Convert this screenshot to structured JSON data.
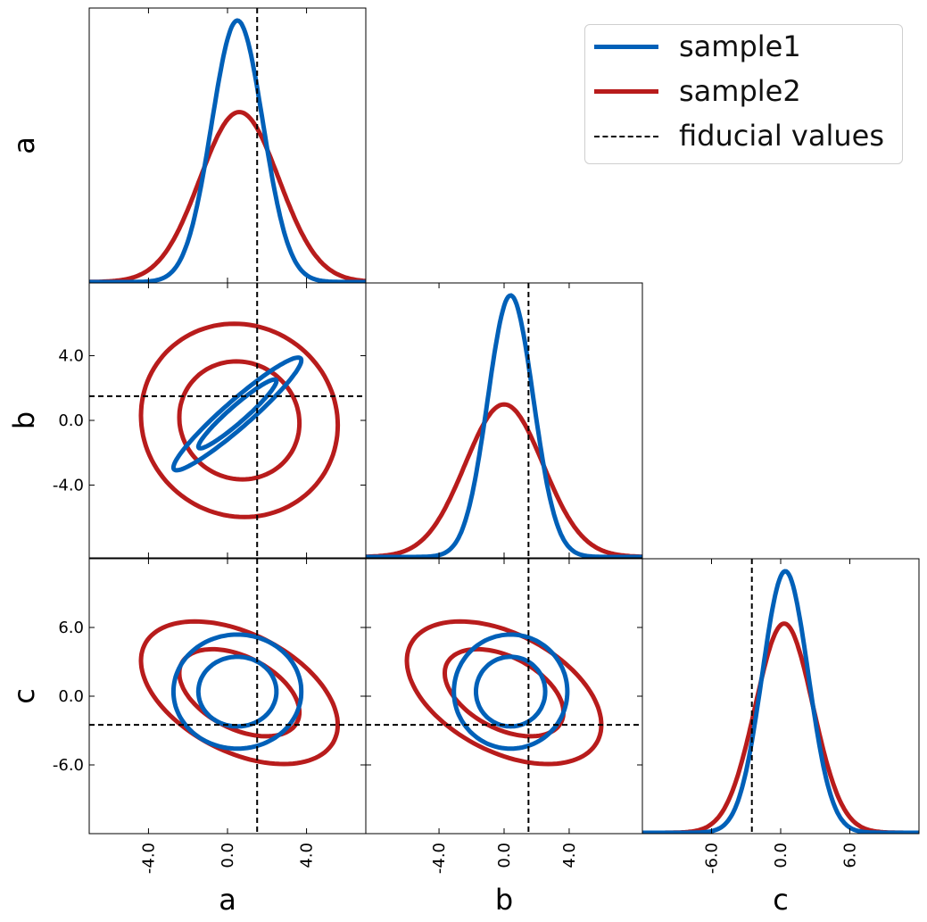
{
  "chart_data": {
    "type": "corner",
    "title": "",
    "parameters": [
      "a",
      "b",
      "c"
    ],
    "fiducial": {
      "a": 1.5,
      "b": 1.5,
      "c": -2.5
    },
    "axis_ranges": {
      "a": [
        -7,
        7
      ],
      "b": [
        -8.5,
        8.5
      ],
      "c": [
        -12,
        12
      ]
    },
    "ticks": {
      "a": [
        "-4.0",
        "0.0",
        "4.0"
      ],
      "b": [
        "-4.0",
        "0.0",
        "4.0"
      ],
      "c": [
        "-6.0",
        "0.0",
        "6.0"
      ]
    },
    "series": [
      {
        "name": "sample1",
        "color": "#0060b8",
        "mean": {
          "a": 0.5,
          "b": 0.4,
          "c": 0.4
        },
        "sigma": {
          "a": 1.3,
          "b": 1.4,
          "c": 2.0
        },
        "correlation": {
          "a-b": 0.95,
          "a-c": 0.0,
          "b-c": 0.0
        }
      },
      {
        "name": "sample2",
        "color": "#b81c1c",
        "mean": {
          "a": 0.6,
          "b": 0.0,
          "c": 0.3
        },
        "sigma": {
          "a": 2.0,
          "b": 2.4,
          "c": 2.5
        },
        "correlation": {
          "a-b": -0.05,
          "a-c": -0.45,
          "b-c": -0.45
        }
      }
    ],
    "legend": {
      "placement": "top-right",
      "entries": [
        "sample1",
        "sample2",
        "fiducial values"
      ]
    },
    "fiducial_label": "fiducial values"
  }
}
